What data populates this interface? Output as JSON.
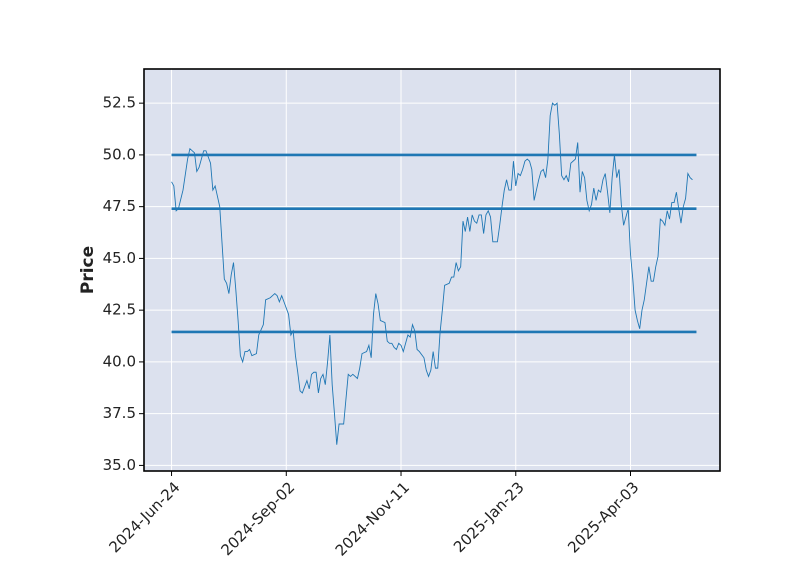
{
  "chart_data": {
    "type": "line",
    "ylabel": "Price",
    "color": "#1f77b4",
    "grid": true,
    "facecolor": "#dce1ee",
    "xlim": [
      -12,
      239
    ],
    "ylim": [
      34.73,
      54.15
    ],
    "xticks": [
      {
        "value": 0,
        "label": "2024-Jun-24"
      },
      {
        "value": 50,
        "label": "2024-Sep-02"
      },
      {
        "value": 100,
        "label": "2024-Nov-11"
      },
      {
        "value": 150,
        "label": "2025-Jan-23"
      },
      {
        "value": 200,
        "label": "2025-Apr-03"
      }
    ],
    "yticks": [
      {
        "value": 35,
        "label": "35.0"
      },
      37.5,
      {
        "value": 40,
        "label": "40.0"
      },
      42.5,
      {
        "value": 45,
        "label": "45.0"
      },
      47.5,
      {
        "value": 50,
        "label": "50.0"
      },
      52.5
    ],
    "hlines": {
      "values": [
        50.0,
        47.4,
        41.45
      ],
      "color": "#1f77b4"
    },
    "x": [
      0,
      1,
      2,
      3,
      5,
      7,
      8,
      10,
      11,
      12,
      14,
      15,
      17,
      18,
      19,
      21,
      23,
      24,
      25,
      26,
      27,
      28,
      29,
      30,
      31,
      32,
      33,
      34,
      35,
      37,
      38,
      40,
      41,
      43,
      45,
      46,
      47,
      48,
      49,
      51,
      52,
      53,
      54,
      55,
      56,
      57,
      59,
      60,
      61,
      62,
      63,
      64,
      65,
      66,
      67,
      68,
      69,
      70,
      71,
      72,
      73,
      75,
      76,
      77,
      78,
      79,
      81,
      82,
      83,
      85,
      86,
      87,
      88,
      89,
      90,
      91,
      93,
      94,
      95,
      96,
      97,
      98,
      99,
      100,
      101,
      103,
      104,
      105,
      106,
      107,
      108,
      110,
      111,
      112,
      113,
      114,
      115,
      116,
      117,
      118,
      119,
      121,
      122,
      123,
      124,
      125,
      126,
      127,
      128,
      129,
      130,
      131,
      132,
      133,
      134,
      135,
      136,
      137,
      138,
      139,
      140,
      141,
      142,
      143,
      144,
      145,
      146,
      147,
      148,
      149,
      150,
      151,
      152,
      153,
      154,
      155,
      156,
      157,
      158,
      160,
      161,
      162,
      163,
      164,
      165,
      166,
      167,
      168,
      169,
      170,
      171,
      172,
      173,
      174,
      175,
      176,
      177,
      178,
      179,
      180,
      181,
      182,
      183,
      184,
      185,
      186,
      187,
      188,
      189,
      190,
      191,
      192,
      193,
      194,
      195,
      196,
      197,
      198,
      199,
      200,
      201,
      202,
      203,
      204,
      205,
      206,
      207,
      208,
      209,
      210,
      211,
      212,
      213,
      214,
      215,
      216,
      217,
      218,
      219,
      220,
      221,
      222,
      223,
      224,
      225,
      226,
      227
    ],
    "values": [
      48.7,
      48.5,
      47.3,
      47.4,
      48.3,
      49.8,
      50.3,
      50.1,
      49.2,
      49.4,
      50.2,
      50.2,
      49.6,
      48.3,
      48.5,
      47.5,
      44.0,
      43.8,
      43.3,
      44.2,
      44.8,
      43.5,
      42.0,
      40.3,
      40.0,
      40.5,
      40.5,
      40.6,
      40.3,
      40.4,
      41.3,
      41.8,
      43.0,
      43.1,
      43.3,
      43.2,
      42.9,
      43.2,
      42.9,
      42.3,
      41.3,
      41.5,
      40.3,
      39.5,
      38.6,
      38.5,
      39.1,
      38.7,
      39.4,
      39.5,
      39.5,
      38.5,
      39.2,
      39.4,
      38.9,
      40.0,
      41.3,
      38.9,
      37.5,
      36.0,
      37.0,
      37.0,
      38.2,
      39.4,
      39.3,
      39.4,
      39.2,
      39.7,
      40.4,
      40.5,
      40.8,
      40.2,
      42.3,
      43.3,
      42.8,
      42.0,
      41.9,
      41.0,
      40.9,
      40.9,
      40.7,
      40.6,
      40.9,
      40.8,
      40.5,
      41.3,
      41.2,
      41.8,
      41.5,
      40.6,
      40.5,
      40.2,
      39.6,
      39.3,
      39.6,
      40.5,
      39.7,
      39.7,
      41.4,
      42.5,
      43.7,
      43.8,
      44.1,
      44.1,
      44.8,
      44.4,
      44.6,
      46.8,
      46.3,
      47.0,
      46.3,
      47.1,
      46.8,
      46.7,
      47.1,
      47.1,
      46.2,
      47.1,
      47.3,
      47.0,
      45.8,
      45.8,
      45.8,
      46.6,
      47.5,
      48.3,
      48.8,
      48.3,
      48.3,
      49.7,
      48.5,
      49.1,
      49.0,
      49.3,
      49.7,
      49.8,
      49.7,
      49.3,
      47.8,
      48.8,
      49.2,
      49.3,
      48.9,
      49.8,
      51.9,
      52.5,
      52.4,
      52.5,
      51.0,
      49.0,
      48.8,
      49.0,
      48.7,
      49.6,
      49.7,
      49.8,
      50.6,
      48.2,
      49.2,
      48.9,
      47.8,
      47.3,
      47.6,
      48.4,
      47.8,
      48.3,
      48.2,
      48.8,
      49.1,
      48.2,
      47.2,
      48.9,
      50.0,
      48.9,
      49.3,
      47.6,
      46.6,
      47.0,
      47.4,
      45.2,
      44.0,
      42.5,
      42.0,
      41.6,
      42.5,
      43.0,
      43.8,
      44.6,
      43.9,
      43.9,
      44.6,
      45.1,
      46.9,
      46.8,
      46.6,
      47.3,
      46.9,
      47.7,
      47.7,
      48.2,
      47.4,
      46.7,
      47.5,
      47.9,
      49.1,
      48.9,
      48.8
    ]
  }
}
